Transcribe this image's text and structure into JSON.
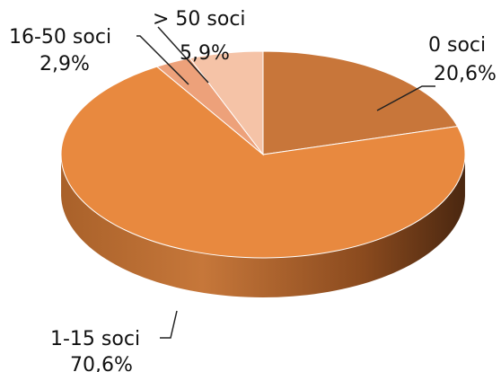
{
  "chart_data": {
    "type": "pie",
    "style": "3d",
    "slices": [
      {
        "label": "0 soci",
        "value_label": "20,6%",
        "value": 20.6,
        "color": "#c8763a"
      },
      {
        "label": "1-15 soci",
        "value_label": "70,6%",
        "value": 70.6,
        "color": "#e8893f"
      },
      {
        "label": "16-50 soci",
        "value_label": "2,9%",
        "value": 2.9,
        "color": "#eda17a"
      },
      {
        "label": "> 50 soci",
        "value_label": "5,9%",
        "value": 5.9,
        "color": "#f5c3a7"
      }
    ]
  }
}
